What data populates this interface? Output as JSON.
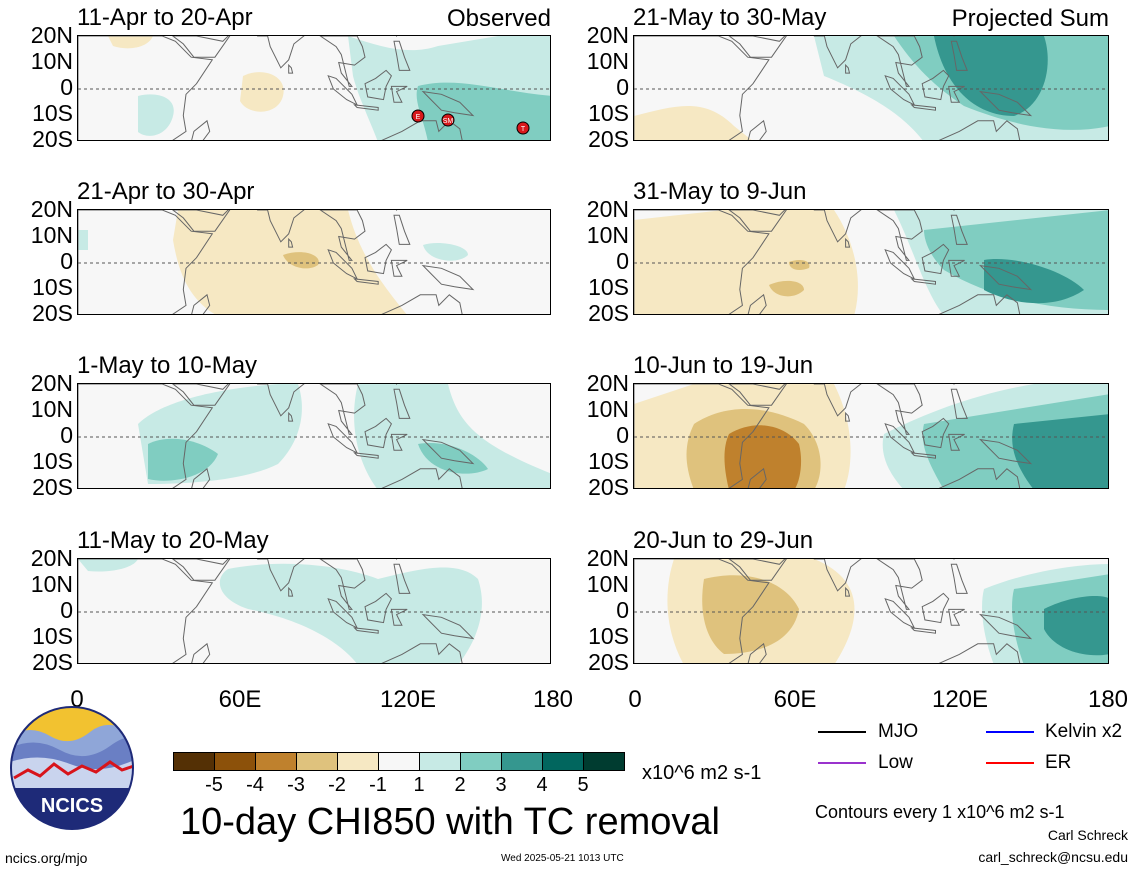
{
  "panels": [
    {
      "title": "11-Apr to 20-Apr",
      "tag": "Observed"
    },
    {
      "title": "21-May to 30-May",
      "tag": "Projected Sum"
    },
    {
      "title": "21-Apr to 30-Apr",
      "tag": ""
    },
    {
      "title": "31-May to 9-Jun",
      "tag": ""
    },
    {
      "title": "1-May to 10-May",
      "tag": ""
    },
    {
      "title": "10-Jun to 19-Jun",
      "tag": ""
    },
    {
      "title": "11-May to 20-May",
      "tag": ""
    },
    {
      "title": "20-Jun to 29-Jun",
      "tag": ""
    }
  ],
  "yaxis": [
    "20N",
    "10N",
    "0",
    "10S",
    "20S"
  ],
  "xaxis": [
    "0",
    "60E",
    "120E",
    "180"
  ],
  "colorbar": {
    "colors": [
      "#543005",
      "#8c510a",
      "#bf812d",
      "#dfc27d",
      "#f6e8c3",
      "#f7f7f7",
      "#c7eae5",
      "#80cdc1",
      "#35978f",
      "#01665e",
      "#003c30"
    ],
    "labels": [
      "-5",
      "-4",
      "-3",
      "-2",
      "-1",
      "1",
      "2",
      "3",
      "4",
      "5"
    ],
    "units": "x10^6 m2 s-1"
  },
  "title": "10-day CHI850 with TC removal",
  "legend": [
    {
      "label": "MJO",
      "color": "#000000"
    },
    {
      "label": "Kelvin x2",
      "color": "#0000ff"
    },
    {
      "label": "Low",
      "color": "#9a32cd"
    },
    {
      "label": "ER",
      "color": "#ff0000"
    }
  ],
  "contours_note": "Contours every 1 x10^6 m2 s-1",
  "author": "Carl Schreck",
  "email": "carl_schreck@ncsu.edu",
  "url": "ncics.org/mjo",
  "timestamp": "Wed 2025-05-21 1013 UTC",
  "logo_text": "NCICS",
  "tc_markers": [
    "E",
    "SM",
    "T"
  ]
}
